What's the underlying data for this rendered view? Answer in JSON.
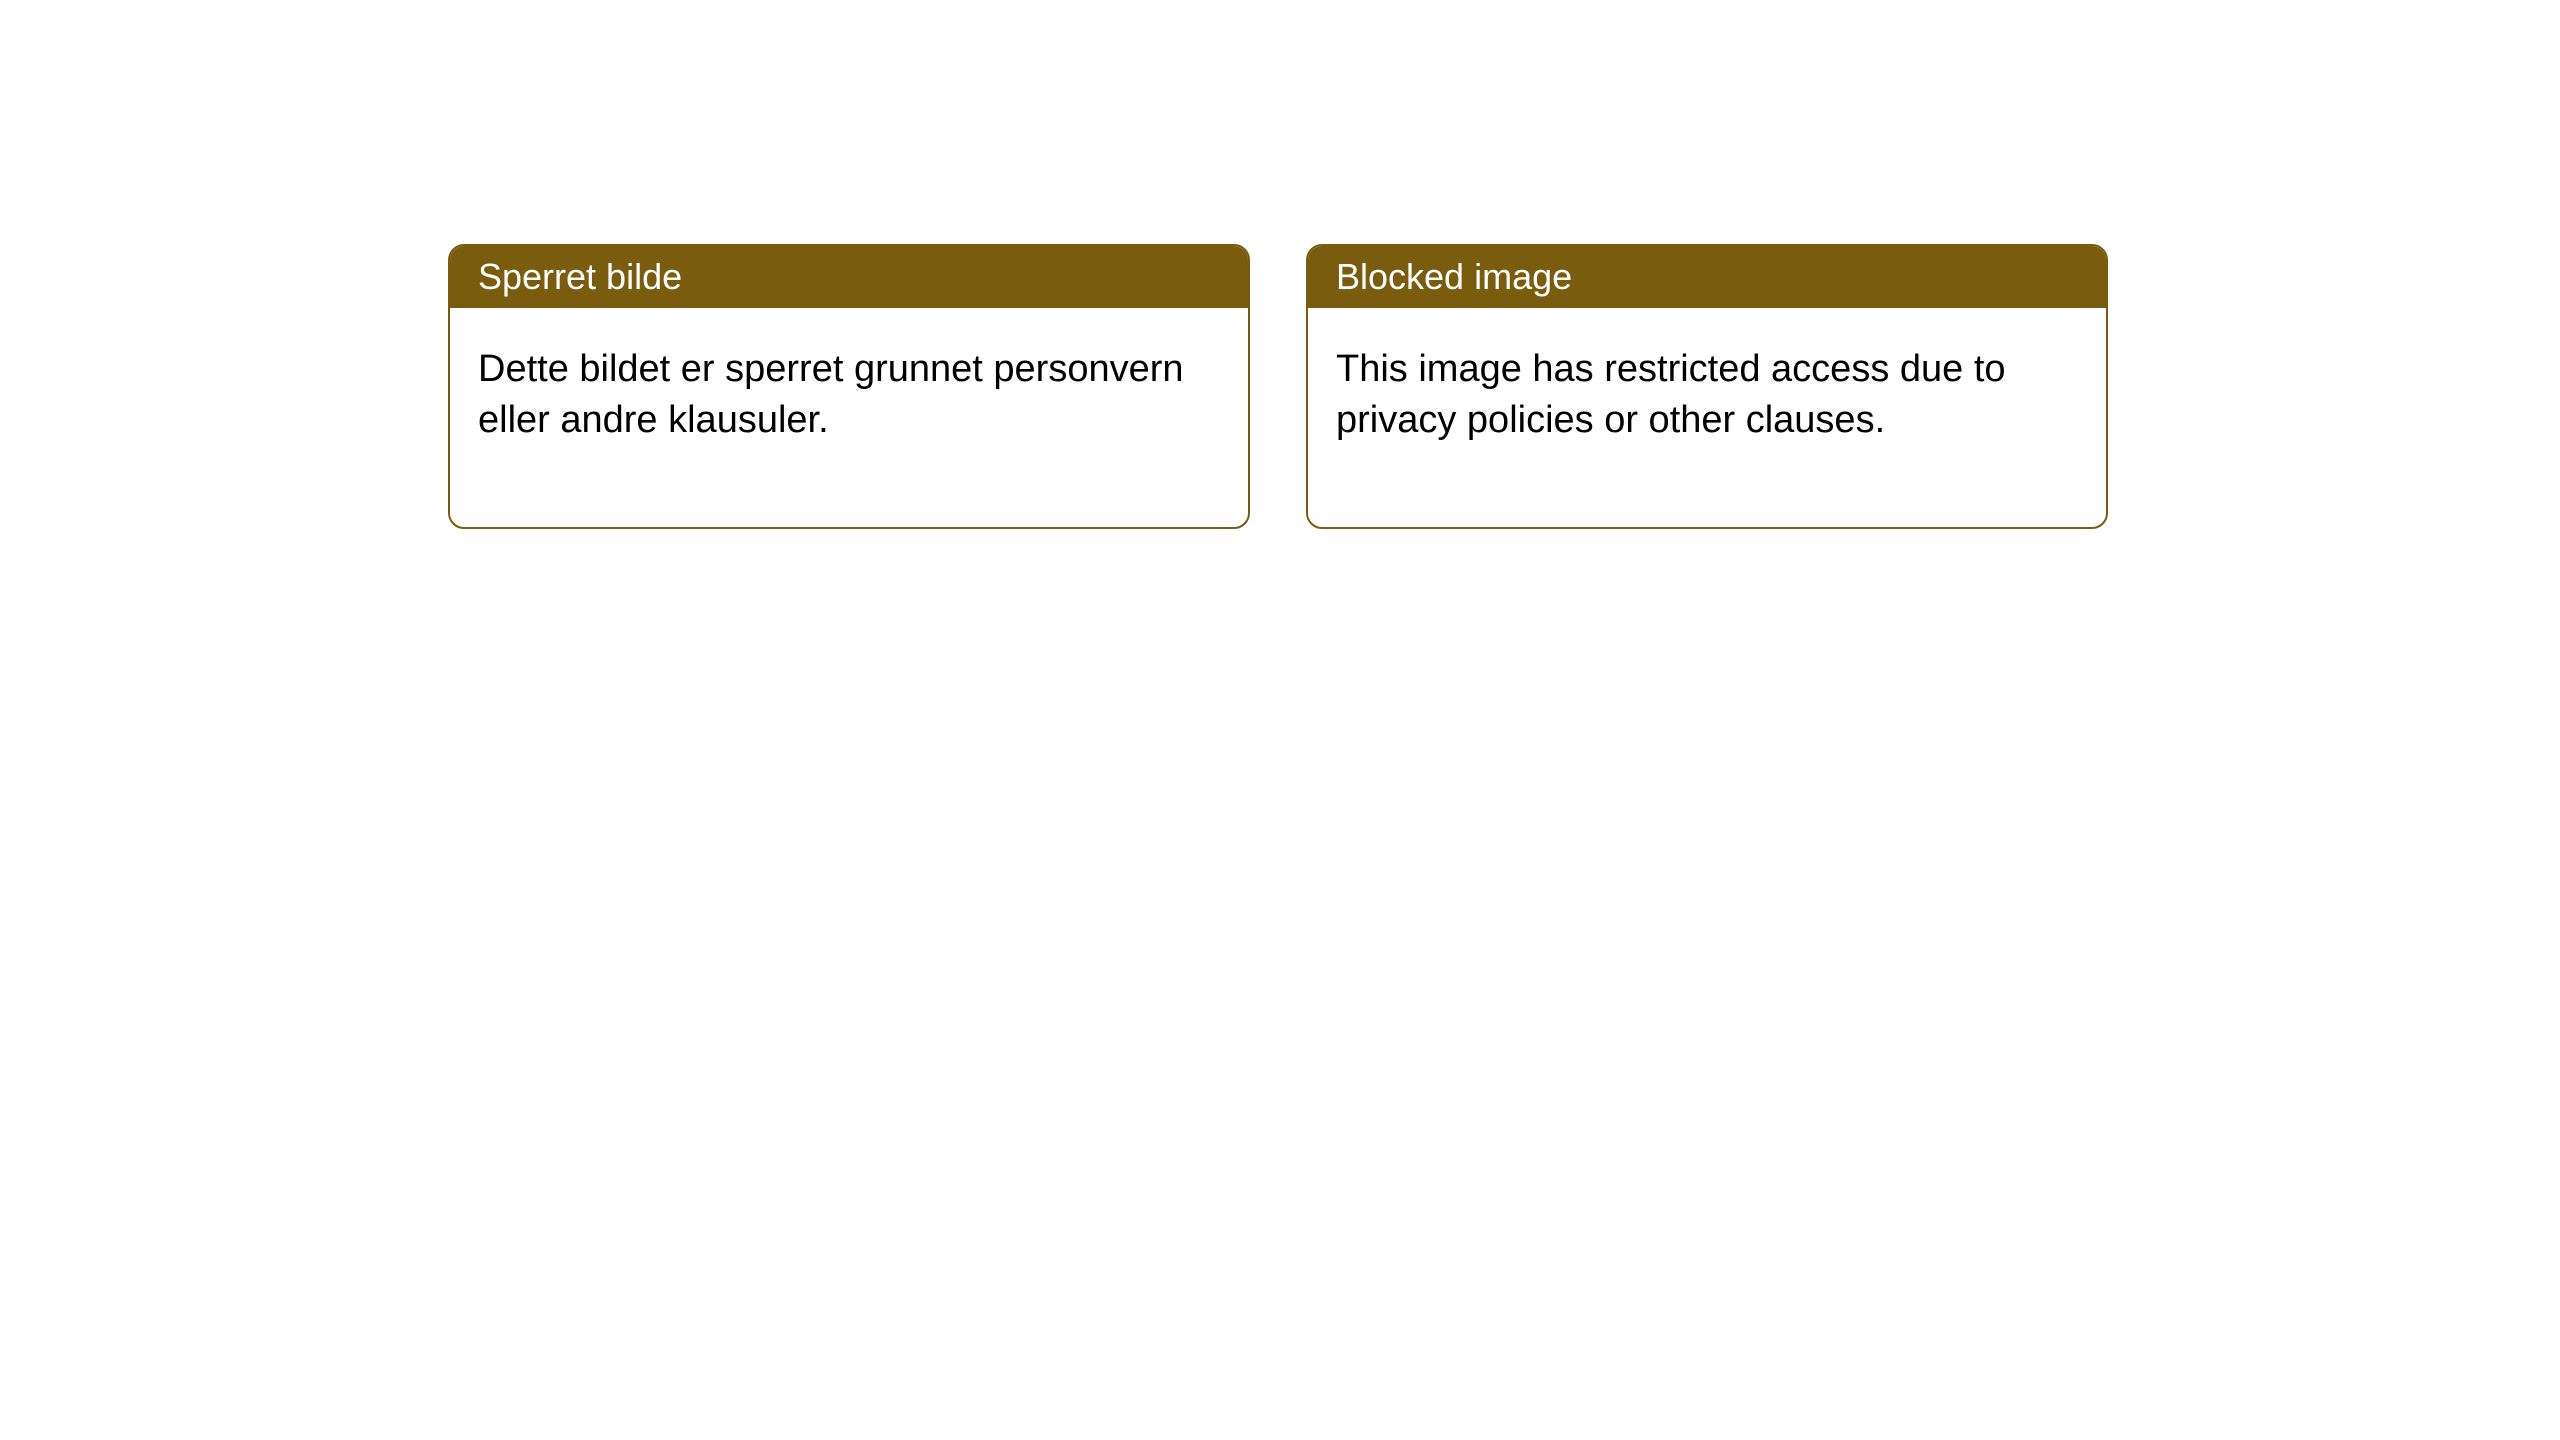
{
  "notices": [
    {
      "title": "Sperret bilde",
      "body": "Dette bildet er sperret grunnet personvern eller andre klausuler."
    },
    {
      "title": "Blocked image",
      "body": "This image has restricted access due to privacy policies or other clauses."
    }
  ],
  "style": {
    "header_bg": "#7a5c0e",
    "header_text_color": "#ffffff",
    "border_color": "#7a5c0e",
    "card_bg": "#ffffff",
    "body_text_color": "#000000",
    "border_radius": 16,
    "title_fontsize": 36,
    "body_fontsize": 38
  }
}
